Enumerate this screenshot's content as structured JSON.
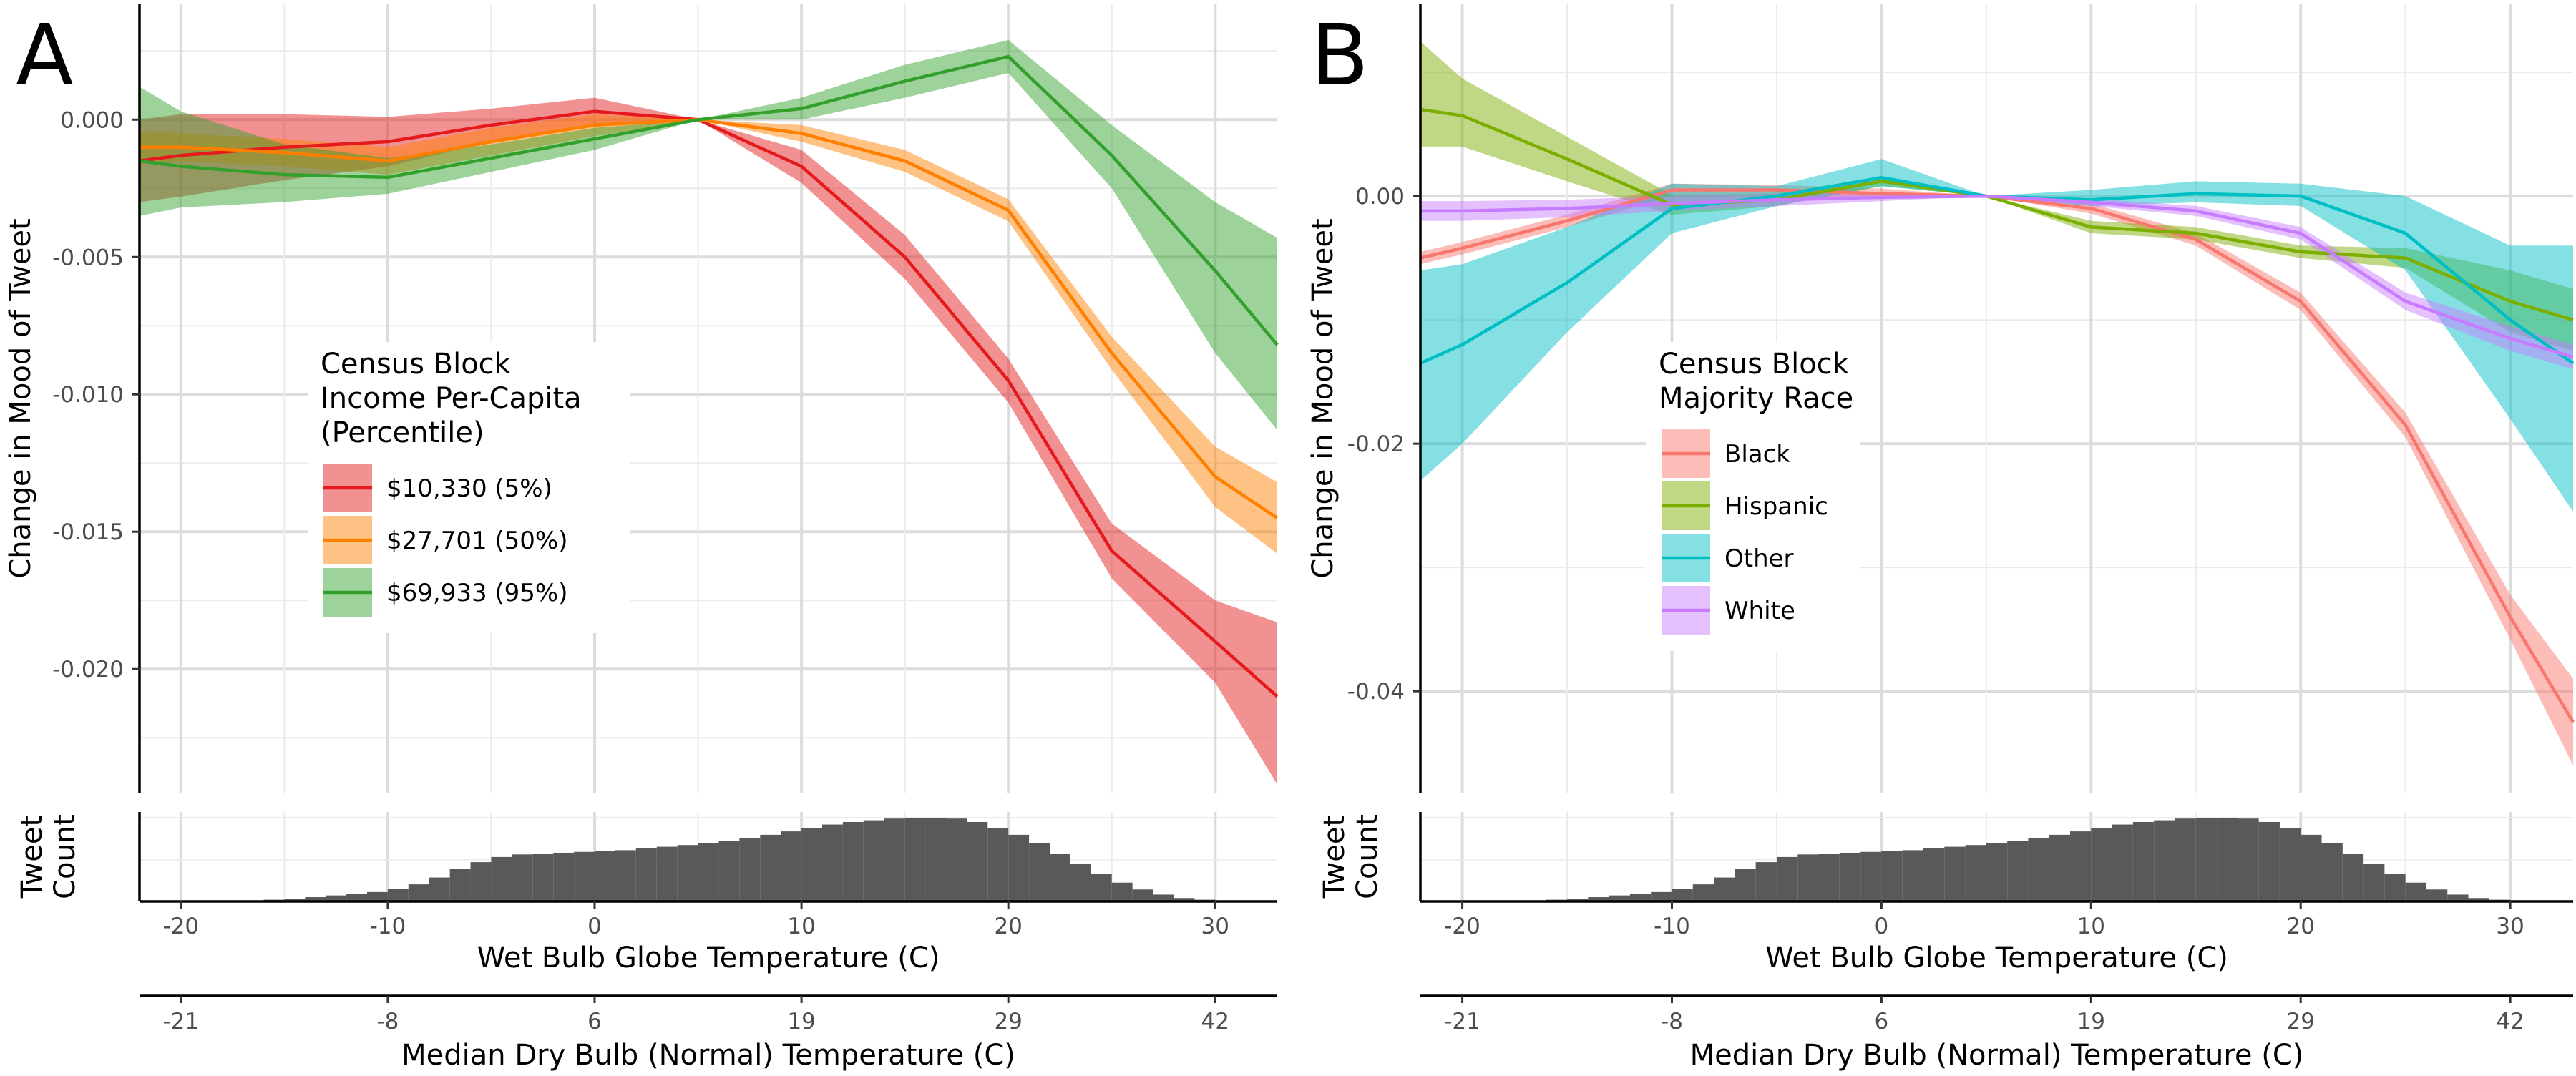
{
  "chart_data": [
    {
      "panel_label": "A",
      "type": "line",
      "ylabel": "Change in Mood of Tweet",
      "xlabel": "Wet Bulb Globe Temperature (C)",
      "x2label": "Median Dry Bulb (Normal) Temperature (C)",
      "xlim": [
        -22,
        33
      ],
      "ylim": [
        -0.0245,
        0.0042
      ],
      "x_ticks": [
        -20,
        -10,
        0,
        10,
        20,
        30
      ],
      "x2_ticks": [
        {
          "x": -20,
          "label": "-21"
        },
        {
          "x": -10,
          "label": "-8"
        },
        {
          "x": 0,
          "label": "6"
        },
        {
          "x": 10,
          "label": "19"
        },
        {
          "x": 20,
          "label": "29"
        },
        {
          "x": 30,
          "label": "42"
        }
      ],
      "y_ticks": [
        {
          "value": 0.0,
          "label": "0.000"
        },
        {
          "value": -0.005,
          "label": "-0.005"
        },
        {
          "value": -0.01,
          "label": "-0.010"
        },
        {
          "value": -0.015,
          "label": "-0.015"
        },
        {
          "value": -0.02,
          "label": "-0.020"
        }
      ],
      "grid": true,
      "legend": {
        "title_lines": [
          "Census Block",
          "Income Per-Capita",
          "(Percentile)"
        ],
        "placement": "center-left"
      },
      "x": [
        -22,
        -20,
        -15,
        -10,
        -5,
        0,
        5,
        10,
        15,
        20,
        25,
        30,
        33
      ],
      "series": [
        {
          "name": "$10,330 (5%)",
          "color": "#E41A1C",
          "values": [
            -0.0015,
            -0.0013,
            -0.001,
            -0.0008,
            -0.0002,
            0.0003,
            0.0,
            -0.0017,
            -0.005,
            -0.0095,
            -0.0157,
            -0.019,
            -0.021
          ],
          "lower": [
            -0.003,
            -0.0028,
            -0.0022,
            -0.0017,
            -0.0008,
            -0.0002,
            0.0,
            -0.0023,
            -0.0058,
            -0.0103,
            -0.0167,
            -0.0205,
            -0.0242
          ],
          "upper": [
            0.0,
            0.0002,
            0.0002,
            0.0001,
            0.0004,
            0.0008,
            0.0,
            -0.0011,
            -0.0042,
            -0.0087,
            -0.0147,
            -0.0175,
            -0.0183
          ]
        },
        {
          "name": "$27,701 (50%)",
          "color": "#FF7F00",
          "values": [
            -0.001,
            -0.001,
            -0.0012,
            -0.0015,
            -0.0008,
            -0.0002,
            0.0,
            -0.0005,
            -0.0015,
            -0.0033,
            -0.0085,
            -0.013,
            -0.0145
          ],
          "lower": [
            -0.0016,
            -0.0015,
            -0.0017,
            -0.002,
            -0.0013,
            -0.0006,
            0.0,
            -0.0008,
            -0.0019,
            -0.0037,
            -0.0091,
            -0.0141,
            -0.0158
          ],
          "upper": [
            -0.0004,
            -0.0005,
            -0.0007,
            -0.001,
            -0.0003,
            0.0002,
            0.0,
            -0.0002,
            -0.0011,
            -0.0029,
            -0.0079,
            -0.0119,
            -0.0132
          ]
        },
        {
          "name": "$69,933 (95%)",
          "color": "#33A02C",
          "values": [
            -0.0015,
            -0.0017,
            -0.002,
            -0.0021,
            -0.0014,
            -0.0007,
            0.0,
            0.0004,
            0.0014,
            0.0023,
            -0.0013,
            -0.0055,
            -0.0082
          ],
          "lower": [
            -0.0035,
            -0.0032,
            -0.003,
            -0.0027,
            -0.0019,
            -0.0011,
            0.0,
            0.0,
            0.0008,
            0.0017,
            -0.0025,
            -0.0085,
            -0.0113
          ],
          "upper": [
            0.0012,
            0.0003,
            -0.0009,
            -0.0014,
            -0.0009,
            -0.0003,
            0.0,
            0.0008,
            0.002,
            0.0029,
            -0.0002,
            -0.003,
            -0.0043
          ]
        }
      ],
      "histogram": {
        "label_lines": [
          "Tweet",
          "Count"
        ],
        "bin_start": -22,
        "bin_width": 1,
        "counts": [
          0,
          0,
          0,
          0,
          0,
          0.01,
          0.02,
          0.03,
          0.05,
          0.07,
          0.09,
          0.11,
          0.15,
          0.2,
          0.28,
          0.38,
          0.46,
          0.52,
          0.55,
          0.56,
          0.57,
          0.58,
          0.59,
          0.6,
          0.62,
          0.64,
          0.66,
          0.68,
          0.71,
          0.74,
          0.78,
          0.82,
          0.86,
          0.9,
          0.93,
          0.95,
          0.97,
          0.98,
          0.98,
          0.97,
          0.93,
          0.86,
          0.78,
          0.68,
          0.56,
          0.44,
          0.32,
          0.22,
          0.14,
          0.08,
          0.04,
          0.02,
          0.01,
          0,
          0
        ]
      }
    },
    {
      "panel_label": "B",
      "type": "line",
      "ylabel": "Change in Mood of Tweet",
      "xlabel": "Wet Bulb Globe Temperature (C)",
      "x2label": "Median Dry Bulb (Normal) Temperature (C)",
      "xlim": [
        -22,
        33
      ],
      "ylim": [
        -0.0482,
        0.0155
      ],
      "x_ticks": [
        -20,
        -10,
        0,
        10,
        20,
        30
      ],
      "x2_ticks": [
        {
          "x": -20,
          "label": "-21"
        },
        {
          "x": -10,
          "label": "-8"
        },
        {
          "x": 0,
          "label": "6"
        },
        {
          "x": 10,
          "label": "19"
        },
        {
          "x": 20,
          "label": "29"
        },
        {
          "x": 30,
          "label": "42"
        }
      ],
      "y_ticks": [
        {
          "value": 0.0,
          "label": "0.00"
        },
        {
          "value": -0.02,
          "label": "-0.02"
        },
        {
          "value": -0.04,
          "label": "-0.04"
        }
      ],
      "grid": true,
      "legend": {
        "title_lines": [
          "Census Block",
          "Majority Race"
        ],
        "placement": "center-left"
      },
      "x": [
        -22,
        -20,
        -15,
        -10,
        -5,
        0,
        5,
        10,
        15,
        20,
        25,
        30,
        33
      ],
      "series": [
        {
          "name": "Black",
          "color": "#F8766D",
          "values": [
            -0.005,
            -0.0042,
            -0.002,
            0.0005,
            0.0005,
            0.0002,
            0.0,
            -0.001,
            -0.0035,
            -0.0085,
            -0.0185,
            -0.034,
            -0.0425
          ],
          "lower": [
            -0.0055,
            -0.0047,
            -0.0025,
            0.0,
            0.0001,
            -0.0002,
            0.0,
            -0.0014,
            -0.004,
            -0.0092,
            -0.0195,
            -0.0358,
            -0.046
          ],
          "upper": [
            -0.0045,
            -0.0037,
            -0.0015,
            0.001,
            0.0009,
            0.0006,
            0.0,
            -0.0006,
            -0.003,
            -0.0078,
            -0.0175,
            -0.0322,
            -0.039
          ]
        },
        {
          "name": "Hispanic",
          "color": "#7CAE00",
          "values": [
            0.007,
            0.0065,
            0.003,
            -0.0007,
            -0.0003,
            0.0012,
            0.0,
            -0.0025,
            -0.003,
            -0.0045,
            -0.005,
            -0.0085,
            -0.01
          ],
          "lower": [
            0.004,
            0.004,
            0.0012,
            -0.0015,
            -0.0008,
            0.0008,
            0.0,
            -0.003,
            -0.0035,
            -0.005,
            -0.0058,
            -0.011,
            -0.0125
          ],
          "upper": [
            0.0125,
            0.0095,
            0.0048,
            0.0001,
            0.0002,
            0.0016,
            0.0,
            -0.002,
            -0.0025,
            -0.004,
            -0.0042,
            -0.006,
            -0.0075
          ]
        },
        {
          "name": "Other",
          "color": "#00BFC4",
          "values": [
            -0.0135,
            -0.012,
            -0.007,
            -0.001,
            0.0,
            0.0015,
            0.0,
            -0.0003,
            0.0002,
            0.0,
            -0.003,
            -0.01,
            -0.0135
          ],
          "lower": [
            -0.023,
            -0.02,
            -0.011,
            -0.003,
            -0.0008,
            0.0008,
            0.0,
            -0.0008,
            -0.0005,
            -0.0008,
            -0.006,
            -0.018,
            -0.0255
          ],
          "upper": [
            -0.006,
            -0.0055,
            -0.0025,
            0.001,
            0.0008,
            0.003,
            0.0,
            0.0005,
            0.0012,
            0.001,
            0.0,
            -0.004,
            -0.004
          ]
        },
        {
          "name": "White",
          "color": "#C77CFF",
          "values": [
            -0.0012,
            -0.0012,
            -0.001,
            -0.0006,
            -0.0003,
            -0.0001,
            0.0,
            -0.0005,
            -0.0012,
            -0.003,
            -0.0085,
            -0.0115,
            -0.013
          ],
          "lower": [
            -0.002,
            -0.002,
            -0.0017,
            -0.0012,
            -0.0008,
            -0.0004,
            0.0,
            -0.0008,
            -0.0016,
            -0.0035,
            -0.0092,
            -0.0125,
            -0.014
          ],
          "upper": [
            -0.0004,
            -0.0004,
            -0.0003,
            0.0,
            0.0002,
            0.0002,
            0.0,
            -0.0002,
            -0.0008,
            -0.0025,
            -0.0078,
            -0.0105,
            -0.012
          ]
        }
      ],
      "histogram": {
        "label_lines": [
          "Tweet",
          "Count"
        ],
        "bin_start": -22,
        "bin_width": 1,
        "counts": [
          0,
          0,
          0,
          0,
          0,
          0.01,
          0.02,
          0.03,
          0.05,
          0.07,
          0.09,
          0.11,
          0.15,
          0.2,
          0.28,
          0.38,
          0.46,
          0.52,
          0.55,
          0.56,
          0.57,
          0.58,
          0.59,
          0.6,
          0.62,
          0.64,
          0.66,
          0.68,
          0.71,
          0.74,
          0.78,
          0.82,
          0.86,
          0.9,
          0.93,
          0.95,
          0.97,
          0.98,
          0.98,
          0.97,
          0.93,
          0.86,
          0.78,
          0.68,
          0.56,
          0.44,
          0.32,
          0.22,
          0.14,
          0.08,
          0.04,
          0.02,
          0.01,
          0,
          0
        ]
      }
    }
  ]
}
